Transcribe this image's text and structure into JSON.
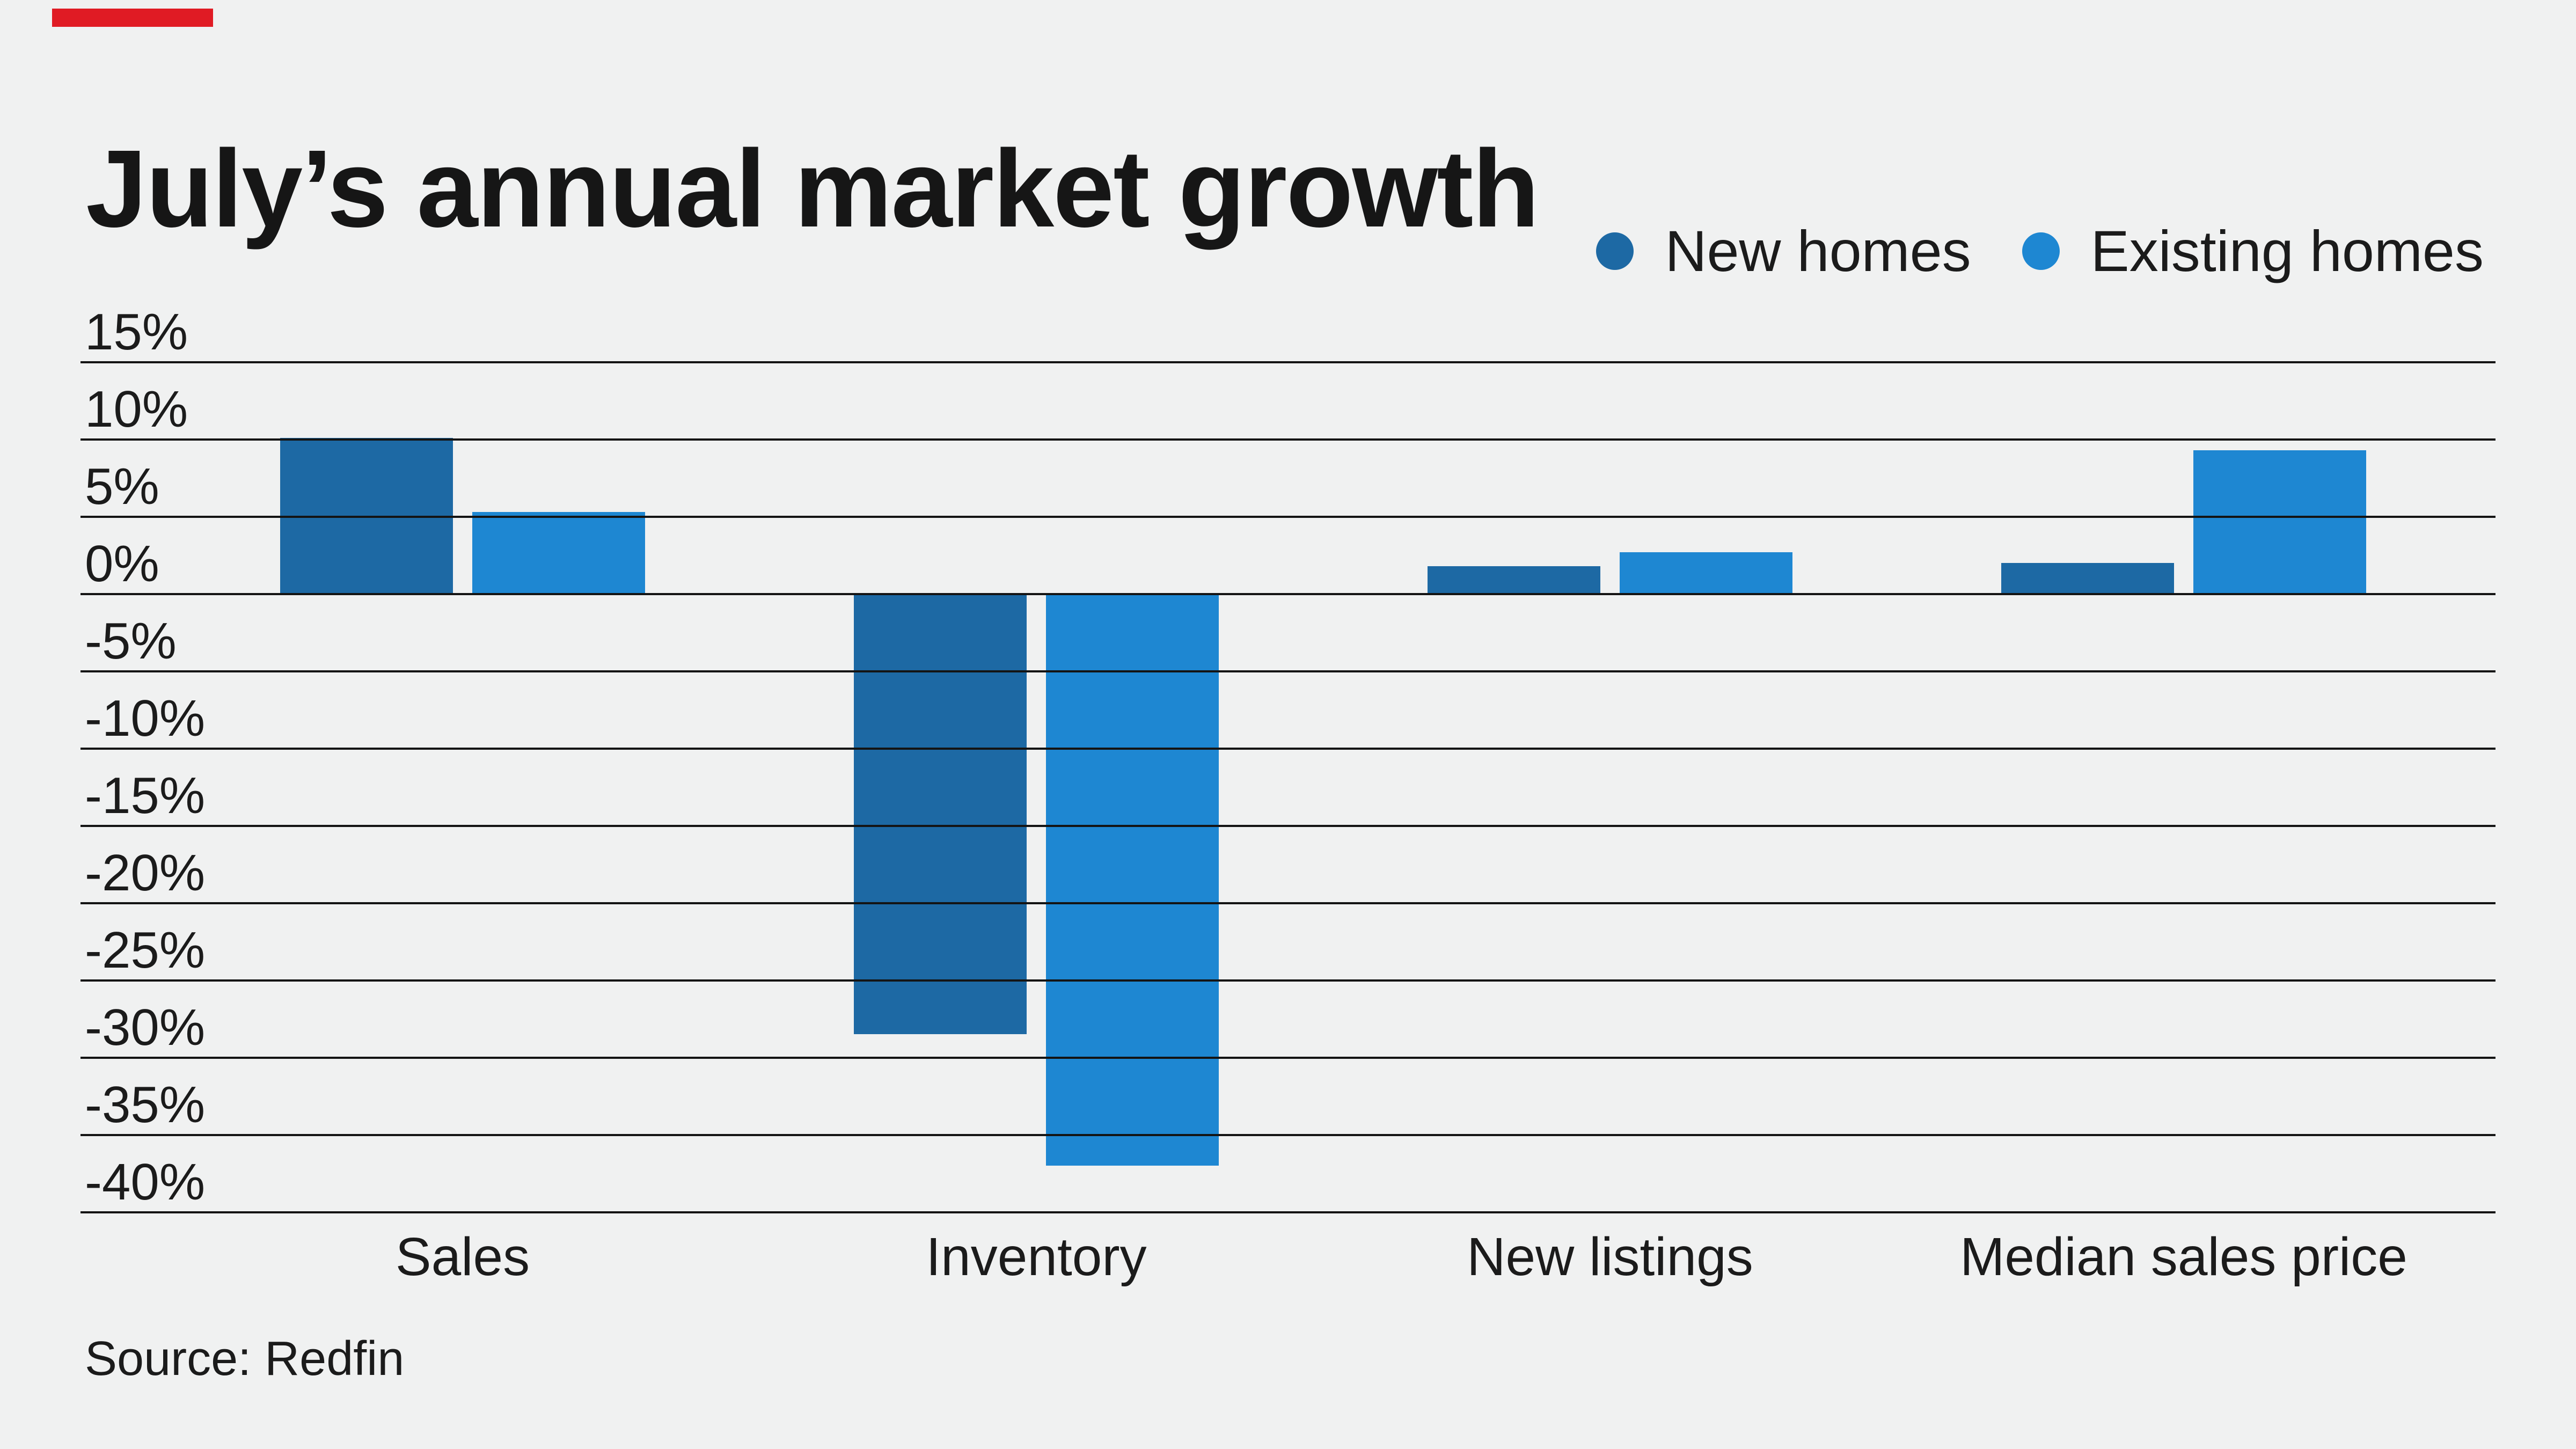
{
  "title": "July’s annual market growth",
  "source": "Source: Redfin",
  "background_color": "#f0f1f1",
  "accent_bar_color": "#e01b24",
  "gridline_color": "#141414",
  "legend": {
    "items": [
      {
        "label": "New homes",
        "color": "#1d69a4"
      },
      {
        "label": "Existing homes",
        "color": "#1e87d2"
      }
    ]
  },
  "chart_data": {
    "type": "bar",
    "title": "July’s annual market growth",
    "categories": [
      "Sales",
      "Inventory",
      "New listings",
      "Median sales price"
    ],
    "series": [
      {
        "name": "New homes",
        "color": "#1d69a4",
        "values": [
          10.1,
          -28.4,
          1.8,
          2.0
        ]
      },
      {
        "name": "Existing homes",
        "color": "#1e87d2",
        "values": [
          5.3,
          -36.9,
          2.7,
          9.3
        ]
      }
    ],
    "ylim": [
      -40,
      15
    ],
    "y_ticks": [
      {
        "value": 15,
        "label": "15%"
      },
      {
        "value": 10,
        "label": "10%"
      },
      {
        "value": 5,
        "label": "5%"
      },
      {
        "value": 0,
        "label": "0%"
      },
      {
        "value": -5,
        "label": "-5%"
      },
      {
        "value": -10,
        "label": "-10%"
      },
      {
        "value": -15,
        "label": "-15%"
      },
      {
        "value": -20,
        "label": "-20%"
      },
      {
        "value": -25,
        "label": "-25%"
      },
      {
        "value": -30,
        "label": "-30%"
      },
      {
        "value": -35,
        "label": "-35%"
      },
      {
        "value": -40,
        "label": "-40%"
      }
    ],
    "grid": "horizontal",
    "legend_position": "top-right",
    "source": "Source: Redfin"
  }
}
